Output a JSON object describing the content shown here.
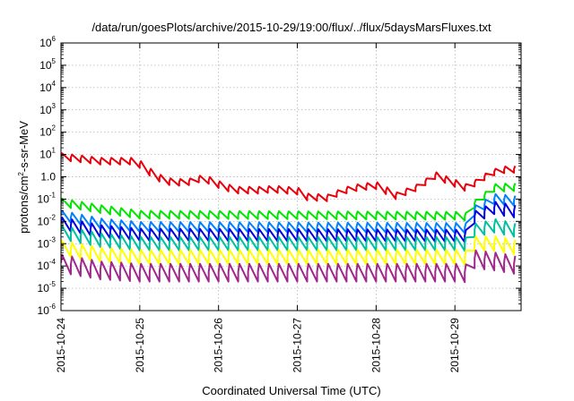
{
  "chart_data": {
    "type": "line",
    "title": "/data/run/goesPlots/archive/2015-10-29/19:00/flux/../flux/5daysMarsFluxes.txt",
    "xlabel": "Coordinated Universal Time (UTC)",
    "ylabel_parts": [
      "protons/cm",
      "2",
      "-s-sr-MeV"
    ],
    "x_unit": "days since first tick",
    "xlim": [
      0,
      5.84
    ],
    "ylim_log10": [
      -6,
      6
    ],
    "y_scale": "log",
    "grid": true,
    "legend": "none",
    "x_ticks": [
      {
        "label": "2015-10-24",
        "pos": 0
      },
      {
        "label": "2015-10-25",
        "pos": 1
      },
      {
        "label": "2015-10-26",
        "pos": 2
      },
      {
        "label": "2015-10-27",
        "pos": 3
      },
      {
        "label": "2015-10-28",
        "pos": 4
      },
      {
        "label": "2015-10-29",
        "pos": 5
      }
    ],
    "y_ticks": [
      {
        "base": "10",
        "exp": "6",
        "pos": 6
      },
      {
        "base": "10",
        "exp": "5",
        "pos": 5
      },
      {
        "base": "10",
        "exp": "4",
        "pos": 4
      },
      {
        "base": "10",
        "exp": "3",
        "pos": 3
      },
      {
        "base": "10",
        "exp": "2",
        "pos": 2
      },
      {
        "base": "10",
        "exp": "1",
        "pos": 1
      },
      {
        "base": "1.0",
        "exp": "",
        "pos": 0
      },
      {
        "base": "10",
        "exp": "-1",
        "pos": -1
      },
      {
        "base": "10",
        "exp": "-2",
        "pos": -2
      },
      {
        "base": "10",
        "exp": "-3",
        "pos": -3
      },
      {
        "base": "10",
        "exp": "-4",
        "pos": -4
      },
      {
        "base": "10",
        "exp": "-5",
        "pos": -5
      },
      {
        "base": "10",
        "exp": "-6",
        "pos": -6
      }
    ],
    "series": [
      {
        "color": "#e8000b",
        "period": 0.125,
        "amp": 0.3,
        "anchors": [
          [
            0,
            0.9
          ],
          [
            0.5,
            0.7
          ],
          [
            0.9,
            0.7
          ],
          [
            1.0,
            0.55
          ],
          [
            1.2,
            0.0
          ],
          [
            1.4,
            -0.25
          ],
          [
            1.6,
            -0.25
          ],
          [
            1.8,
            -0.05
          ],
          [
            2.0,
            -0.35
          ],
          [
            2.2,
            -0.6
          ],
          [
            2.5,
            -0.6
          ],
          [
            2.7,
            -0.55
          ],
          [
            3.0,
            -0.65
          ],
          [
            3.1,
            -0.9
          ],
          [
            3.4,
            -0.95
          ],
          [
            3.55,
            -0.65
          ],
          [
            3.8,
            -0.45
          ],
          [
            4.0,
            -0.4
          ],
          [
            4.25,
            -0.85
          ],
          [
            4.5,
            -0.5
          ],
          [
            4.75,
            0.05
          ],
          [
            5.0,
            -0.3
          ],
          [
            5.1,
            -0.5
          ],
          [
            5.2,
            -0.4
          ],
          [
            5.35,
            -0.05
          ],
          [
            5.55,
            0.3
          ],
          [
            5.84,
            0.35
          ]
        ]
      },
      {
        "color": "#00e600",
        "period": 0.125,
        "amp": 0.35,
        "anchors": [
          [
            0,
            -1.15
          ],
          [
            0.5,
            -1.45
          ],
          [
            1.0,
            -1.7
          ],
          [
            5.05,
            -1.75
          ],
          [
            5.15,
            -1.8
          ],
          [
            5.25,
            -1.2
          ],
          [
            5.5,
            -0.5
          ],
          [
            5.84,
            -0.45
          ]
        ]
      },
      {
        "color": "#0080ff",
        "period": 0.125,
        "amp": 0.45,
        "anchors": [
          [
            0,
            -1.75
          ],
          [
            0.5,
            -2.1
          ],
          [
            1.0,
            -2.25
          ],
          [
            5.1,
            -2.3
          ],
          [
            5.2,
            -2.3
          ],
          [
            5.25,
            -1.5
          ],
          [
            5.5,
            -1.0
          ],
          [
            5.84,
            -1.1
          ]
        ]
      },
      {
        "color": "#0000e0",
        "period": 0.125,
        "amp": 0.55,
        "anchors": [
          [
            0,
            -2.1
          ],
          [
            0.5,
            -2.45
          ],
          [
            1.0,
            -2.6
          ],
          [
            5.1,
            -2.65
          ],
          [
            5.2,
            -2.7
          ],
          [
            5.25,
            -1.8
          ],
          [
            5.5,
            -1.4
          ],
          [
            5.84,
            -1.6
          ]
        ]
      },
      {
        "color": "#00c0a0",
        "period": 0.125,
        "amp": 0.6,
        "anchors": [
          [
            0,
            -2.5
          ],
          [
            0.5,
            -2.85
          ],
          [
            1.0,
            -3.0
          ],
          [
            5.1,
            -3.0
          ],
          [
            5.2,
            -3.1
          ],
          [
            5.25,
            -2.4
          ],
          [
            5.5,
            -2.2
          ],
          [
            5.84,
            -2.45
          ]
        ]
      },
      {
        "color": "#ffff00",
        "period": 0.125,
        "amp": 0.65,
        "anchors": [
          [
            0,
            -3.2
          ],
          [
            0.5,
            -3.5
          ],
          [
            1.0,
            -3.6
          ],
          [
            5.1,
            -3.6
          ],
          [
            5.2,
            -3.7
          ],
          [
            5.25,
            -3.0
          ],
          [
            5.5,
            -3.0
          ],
          [
            5.84,
            -3.2
          ]
        ]
      },
      {
        "color": "#a0288c",
        "period": 0.125,
        "amp": 0.8,
        "anchors": [
          [
            0,
            -3.9
          ],
          [
            0.5,
            -4.2
          ],
          [
            1.0,
            -4.3
          ],
          [
            5.1,
            -4.3
          ],
          [
            5.2,
            -4.4
          ],
          [
            5.25,
            -3.7
          ],
          [
            5.5,
            -3.8
          ],
          [
            5.84,
            -4.0
          ]
        ]
      }
    ]
  }
}
